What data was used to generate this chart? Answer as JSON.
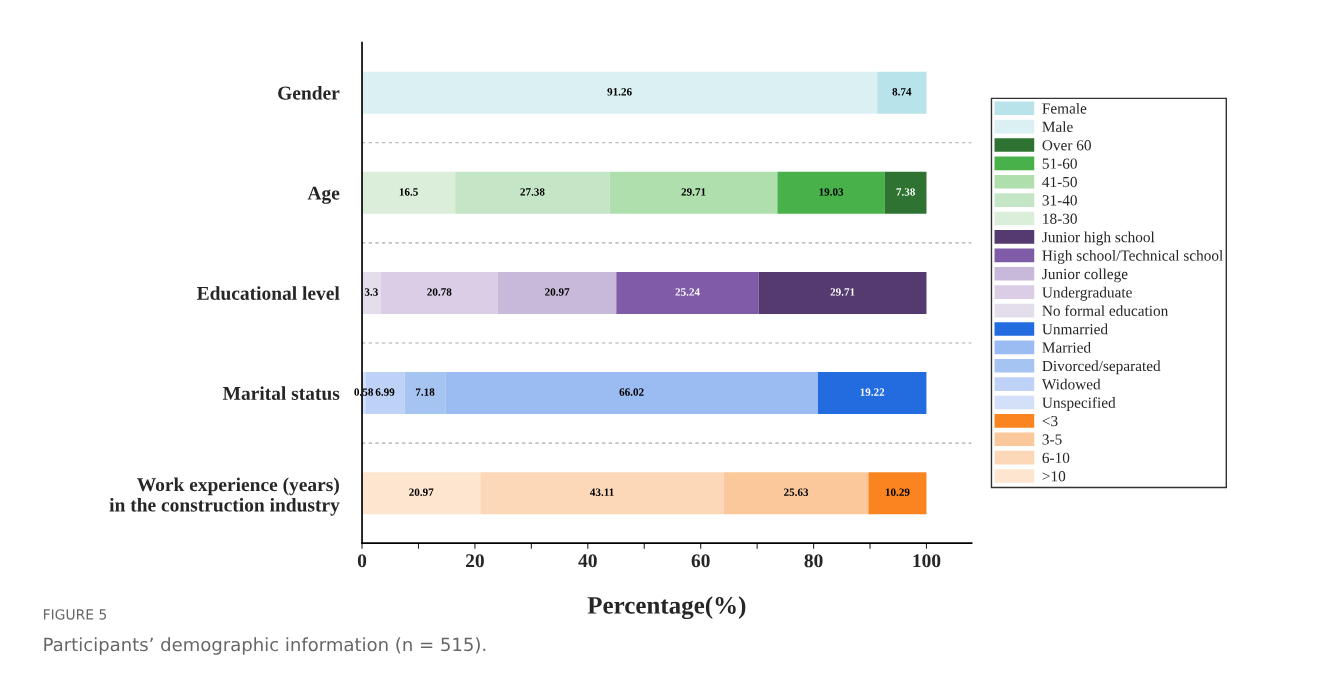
{
  "chart_data": {
    "type": "bar",
    "orientation": "horizontal",
    "stacked": true,
    "data_labels": true,
    "legend": "right",
    "grid": "y",
    "xlabel": "Percentage(%)",
    "categories": [
      "Gender",
      "Age",
      "Educational level",
      "Marital status",
      "Work experience (years)\nin the construction industry"
    ],
    "xlim": [
      0,
      108
    ],
    "xticks": [
      0,
      {
        "value": 10,
        "label": null
      },
      20,
      {
        "value": 30,
        "label": null
      },
      40,
      {
        "value": 50,
        "label": null
      },
      60,
      {
        "value": 70,
        "label": null
      },
      80,
      {
        "value": 90,
        "label": null
      },
      100
    ],
    "series": [
      {
        "name": "Male",
        "color": "#dbf0f3",
        "values": [
          91.26,
          null,
          null,
          null,
          null
        ]
      },
      {
        "name": "Female",
        "color": "#b8e3ea",
        "values": [
          8.74,
          null,
          null,
          null,
          null
        ]
      },
      {
        "name": "18-30",
        "color": "#daeed9",
        "values": [
          null,
          16.5,
          null,
          null,
          null
        ]
      },
      {
        "name": "31-40",
        "color": "#c5e6c6",
        "values": [
          null,
          27.38,
          null,
          null,
          null
        ]
      },
      {
        "name": "41-50",
        "color": "#b0dfae",
        "values": [
          null,
          29.71,
          null,
          null,
          null
        ]
      },
      {
        "name": "51-60",
        "color": "#48b14a",
        "values": [
          null,
          19.03,
          null,
          null,
          null
        ]
      },
      {
        "name": "Over 60",
        "color": "#2f7332",
        "values": [
          null,
          7.38,
          null,
          null,
          null
        ]
      },
      {
        "name": "No formal education",
        "color": "#e4deec",
        "values": [
          null,
          null,
          3.3,
          null,
          null
        ]
      },
      {
        "name": "Undergraduate",
        "color": "#dacde5",
        "values": [
          null,
          null,
          20.78,
          null,
          null
        ]
      },
      {
        "name": "Junior college",
        "color": "#c8b8da",
        "values": [
          null,
          null,
          20.97,
          null,
          null
        ]
      },
      {
        "name": "High school/Technical school",
        "color": "#805ca8",
        "values": [
          null,
          null,
          25.24,
          null,
          null
        ]
      },
      {
        "name": "Junior high school",
        "color": "#553a70",
        "values": [
          null,
          null,
          29.71,
          null,
          null
        ]
      },
      {
        "name": "Unspecified",
        "color": "#d3e0f8",
        "values": [
          null,
          null,
          null,
          0.58,
          null
        ]
      },
      {
        "name": "Widowed",
        "color": "#bed1f6",
        "values": [
          null,
          null,
          null,
          6.99,
          null
        ]
      },
      {
        "name": "Divorced/separated",
        "color": "#a6c4f2",
        "values": [
          null,
          null,
          null,
          7.18,
          null
        ]
      },
      {
        "name": "Married",
        "color": "#9bbcf2",
        "values": [
          null,
          null,
          null,
          66.02,
          null
        ]
      },
      {
        "name": "Unmarried",
        "color": "#226ce0",
        "values": [
          null,
          null,
          null,
          19.22,
          null
        ]
      },
      {
        "name": ">10",
        "color": "#fde5d0",
        "values": [
          null,
          null,
          null,
          null,
          20.97
        ]
      },
      {
        "name": "6-10",
        "color": "#fdd8b8",
        "values": [
          null,
          null,
          null,
          null,
          43.11
        ]
      },
      {
        "name": "3-5",
        "color": "#fbc89c",
        "values": [
          null,
          null,
          null,
          null,
          25.63
        ]
      },
      {
        "name": "<3",
        "color": "#fa8420",
        "values": [
          null,
          null,
          null,
          null,
          10.29
        ]
      }
    ],
    "annotations": [
      "FIGURE 5",
      "Participants’ demographic information (n = 515)."
    ]
  }
}
